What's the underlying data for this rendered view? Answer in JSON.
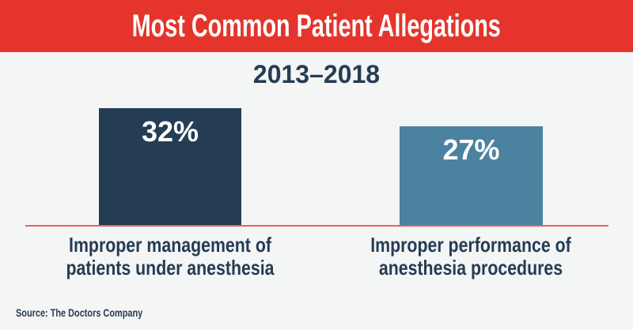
{
  "page": {
    "background": "#f4f5f5"
  },
  "header": {
    "title": "Most Common Patient Allegations",
    "bg_color": "#e5342b",
    "text_color": "#ffffff"
  },
  "chart_data": {
    "type": "bar",
    "title": "Most Common Patient Allegations",
    "subtitle": "2013–2018",
    "categories": [
      "Improper management of\npatients under anesthesia",
      "Improper performance of\nanesthesia procedures"
    ],
    "values": [
      32,
      27
    ],
    "value_labels": [
      "32%",
      "27%"
    ],
    "bar_colors": [
      "#253c55",
      "#4b82a0"
    ],
    "value_label_color": "#ffffff",
    "category_label_color": "#253c55",
    "baseline_color": "#ea6257",
    "source": "Source: The Doctors Company",
    "ylim": [
      0,
      35
    ],
    "grid": false,
    "legend": false,
    "value_label_position": "inside-top"
  }
}
